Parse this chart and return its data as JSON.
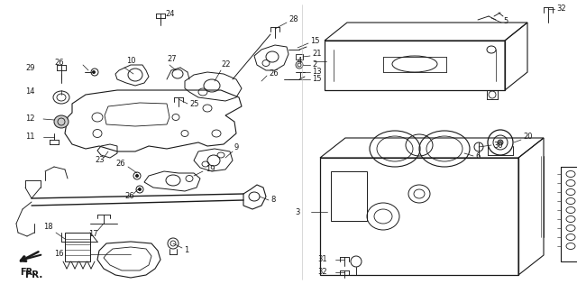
{
  "bg_color": "#ffffff",
  "line_color": "#1a1a1a",
  "lw": 0.65,
  "fig_w": 6.4,
  "fig_h": 3.15,
  "dpi": 100
}
